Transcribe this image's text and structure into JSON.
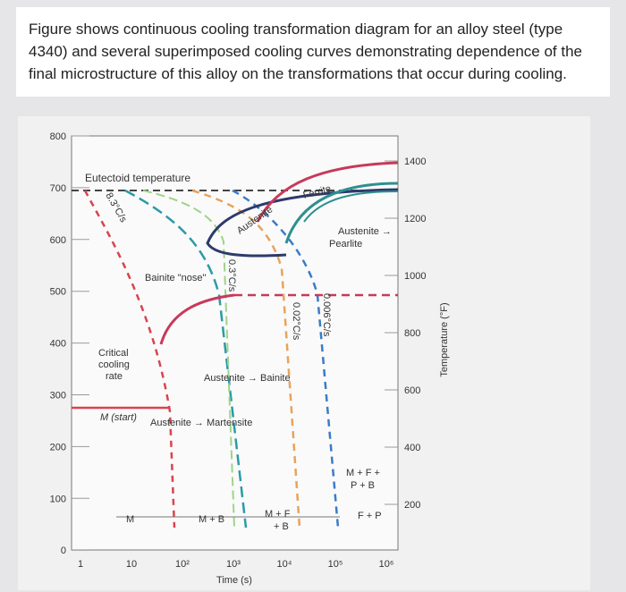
{
  "header": {
    "text": "Figure shows continuous cooling transformation diagram for an alloy steel (type 4340) and several superimposed cooling curves demonstrating dependence of the final microstructure of this alloy on the transformations that occur during cooling."
  },
  "figure": {
    "y_left_ticks": [
      "800",
      "700",
      "600",
      "500",
      "400",
      "300",
      "200",
      "100",
      "0"
    ],
    "y_right_ticks": [
      "1400",
      "1200",
      "1000",
      "800",
      "600",
      "400",
      "200"
    ],
    "x_ticks": [
      "1",
      "10",
      "10²",
      "10³",
      "10⁴",
      "10⁵",
      "10⁶"
    ],
    "x_label": "Time (s)",
    "y_right_label": "Temperature (°F)",
    "annotations": {
      "eutectoid": "Eutectoid temperature",
      "rate1": "8.3°C/s",
      "austenite": "Austenite",
      "ferrite": "Ferrite",
      "austenite_arrow": "Austenite →",
      "pearlite": "Pearlite",
      "bainite_nose": "Bainite \"nose\"",
      "rate2": "0.3°C/s",
      "rate3": "0.02°C/s",
      "rate4": "0.006°C/s",
      "critical": [
        "Critical",
        "cooling",
        "rate"
      ],
      "aus_bainite": "Austenite → Bainite",
      "m_start": "M (start)",
      "aus_martensite": "Austenite → Martensite",
      "mfpb": [
        "M + F +",
        "P + B"
      ],
      "fp": "F + P",
      "mfb": [
        "M + F",
        "+ B"
      ],
      "mb": "M + B",
      "m": "M"
    }
  }
}
